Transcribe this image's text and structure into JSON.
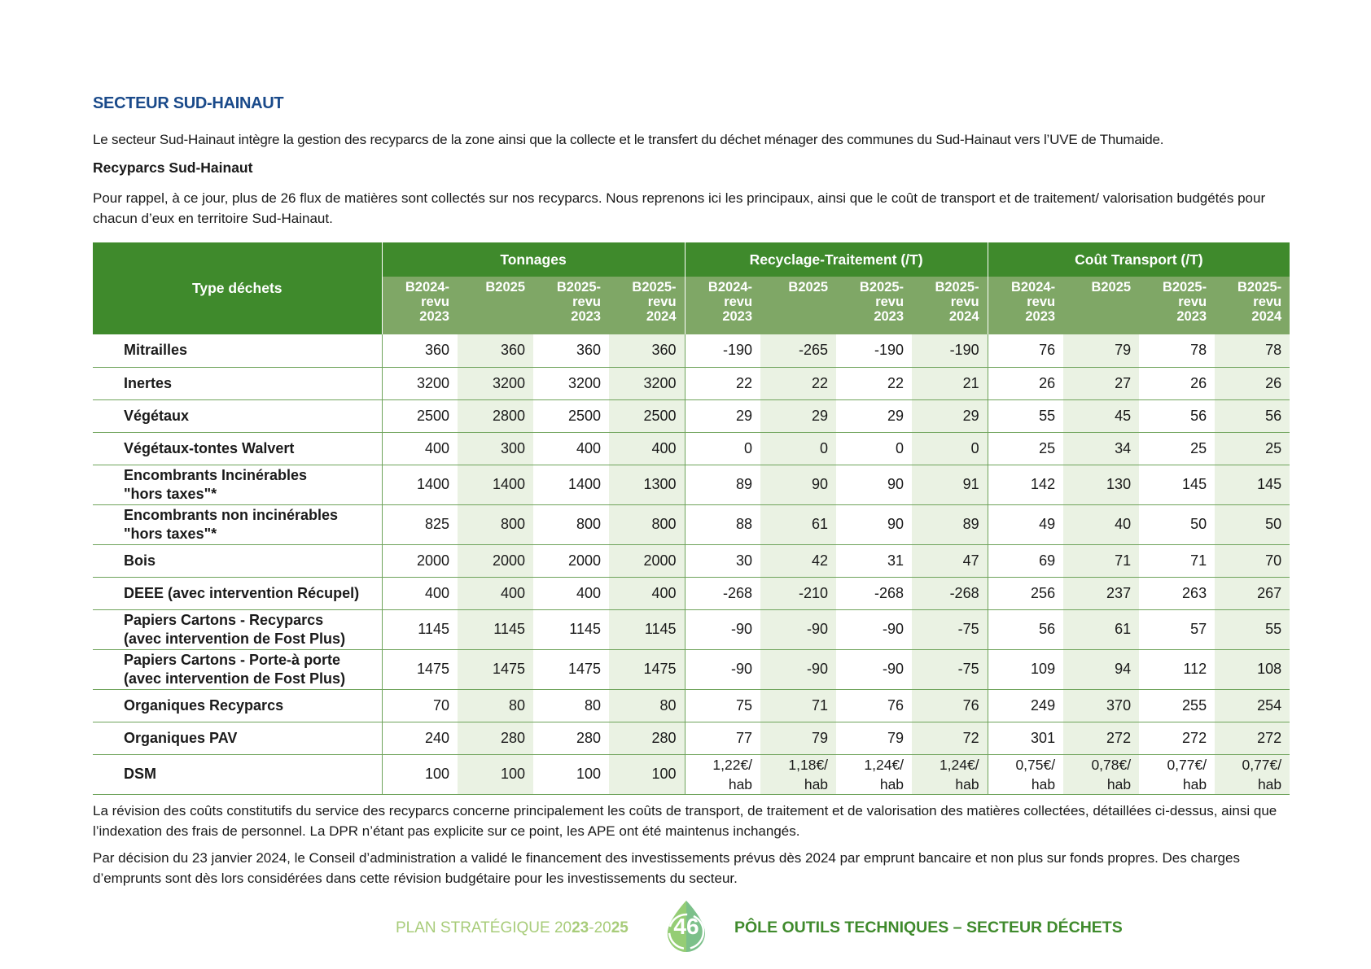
{
  "section_title": "SECTEUR SUD-HAINAUT",
  "intro": "Le secteur Sud-Hainaut intègre la gestion des recyparcs de la zone ainsi que la collecte et le transfert du déchet ménager des communes du Sud-Hainaut vers l’UVE de Thumaide.",
  "subtitle": "Recyparcs Sud-Hainaut",
  "paragraph1": "Pour rappel, à ce jour, plus de 26 flux de matières sont collectés sur nos recyparcs. Nous reprenons ici les principaux, ainsi que le coût de transport et de traitement/ valorisation budgétés pour chacun d’eux en territoire Sud-Hainaut.",
  "table": {
    "type_header": "Type déchets",
    "groups": [
      "Tonnages",
      "Recyclage-Traitement (/T)",
      "Coût Transport (/T)"
    ],
    "subheaders": [
      "B2024-\nrevu\n2023",
      "B2025",
      "B2025-\nrevu\n2023",
      "B2025-\nrevu\n2024"
    ],
    "rows": [
      {
        "type": "Mitrailles",
        "values": [
          "360",
          "360",
          "360",
          "360",
          "-190",
          "-265",
          "-190",
          "-190",
          "76",
          "79",
          "78",
          "78"
        ]
      },
      {
        "type": "Inertes",
        "values": [
          "3200",
          "3200",
          "3200",
          "3200",
          "22",
          "22",
          "22",
          "21",
          "26",
          "27",
          "26",
          "26"
        ]
      },
      {
        "type": "Végétaux",
        "values": [
          "2500",
          "2800",
          "2500",
          "2500",
          "29",
          "29",
          "29",
          "29",
          "55",
          "45",
          "56",
          "56"
        ]
      },
      {
        "type": "Végétaux-tontes Walvert",
        "values": [
          "400",
          "300",
          "400",
          "400",
          "0",
          "0",
          "0",
          "0",
          "25",
          "34",
          "25",
          "25"
        ]
      },
      {
        "type": "Encombrants Incinérables\n\"hors taxes\"*",
        "values": [
          "1400",
          "1400",
          "1400",
          "1300",
          "89",
          "90",
          "90",
          "91",
          "142",
          "130",
          "145",
          "145"
        ]
      },
      {
        "type": "Encombrants non incinérables\n\"hors taxes\"*",
        "values": [
          "825",
          "800",
          "800",
          "800",
          "88",
          "61",
          "90",
          "89",
          "49",
          "40",
          "50",
          "50"
        ]
      },
      {
        "type": "Bois",
        "values": [
          "2000",
          "2000",
          "2000",
          "2000",
          "30",
          "42",
          "31",
          "47",
          "69",
          "71",
          "71",
          "70"
        ]
      },
      {
        "type": "DEEE (avec intervention Récupel)",
        "values": [
          "400",
          "400",
          "400",
          "400",
          "-268",
          "-210",
          "-268",
          "-268",
          "256",
          "237",
          "263",
          "267"
        ]
      },
      {
        "type": "Papiers Cartons - Recyparcs\n(avec intervention de Fost Plus)",
        "values": [
          "1145",
          "1145",
          "1145",
          "1145",
          "-90",
          "-90",
          "-90",
          "-75",
          "56",
          "61",
          "57",
          "55"
        ]
      },
      {
        "type": "Papiers Cartons - Porte-à porte\n(avec intervention de Fost Plus)",
        "values": [
          "1475",
          "1475",
          "1475",
          "1475",
          "-90",
          "-90",
          "-90",
          "-75",
          "109",
          "94",
          "112",
          "108"
        ]
      },
      {
        "type": "Organiques Recyparcs",
        "values": [
          "70",
          "80",
          "80",
          "80",
          "75",
          "71",
          "76",
          "76",
          "249",
          "370",
          "255",
          "254"
        ]
      },
      {
        "type": "Organiques PAV",
        "values": [
          "240",
          "280",
          "280",
          "280",
          "77",
          "79",
          "79",
          "72",
          "301",
          "272",
          "272",
          "272"
        ]
      },
      {
        "type": "DSM",
        "values": [
          "100",
          "100",
          "100",
          "100",
          "1,22€/\nhab",
          "1,18€/\nhab",
          "1,24€/\nhab",
          "1,24€/\nhab",
          "0,75€/\nhab",
          "0,78€/\nhab",
          "0,77€/\nhab",
          "0,77€/\nhab"
        ]
      }
    ]
  },
  "paragraph2": "La révision des coûts constitutifs du service des recyparcs concerne principalement les coûts de transport, de traitement et de valorisation des matières collectées, détaillées ci-dessus, ainsi que l’indexation des frais de personnel. La DPR n’étant pas explicite sur ce point, les APE ont été maintenus inchangés.",
  "paragraph3": "Par décision du 23 janvier 2024, le Conseil d’administration a validé le financement des investissements prévus dès 2024 par emprunt bancaire et non plus sur fonds propres. Des charges d’emprunts sont dès lors considérées dans cette révision budgétaire pour les investissements du secteur.",
  "footer": {
    "left_label": "PLAN STRATÉGIQUE 20",
    "left_bold1": "23",
    "left_mid": "-20",
    "left_bold2": "25",
    "page_number": "46",
    "right_label": "PÔLE OUTILS TECHNIQUES – SECTEUR DÉCHETS"
  },
  "colors": {
    "header_green": "#3f8a2c",
    "subheader_green": "#7fa766",
    "row_alt": "#eaf2e3",
    "title_blue": "#1a4a8a",
    "footer_light_green": "#a8cc7a"
  }
}
